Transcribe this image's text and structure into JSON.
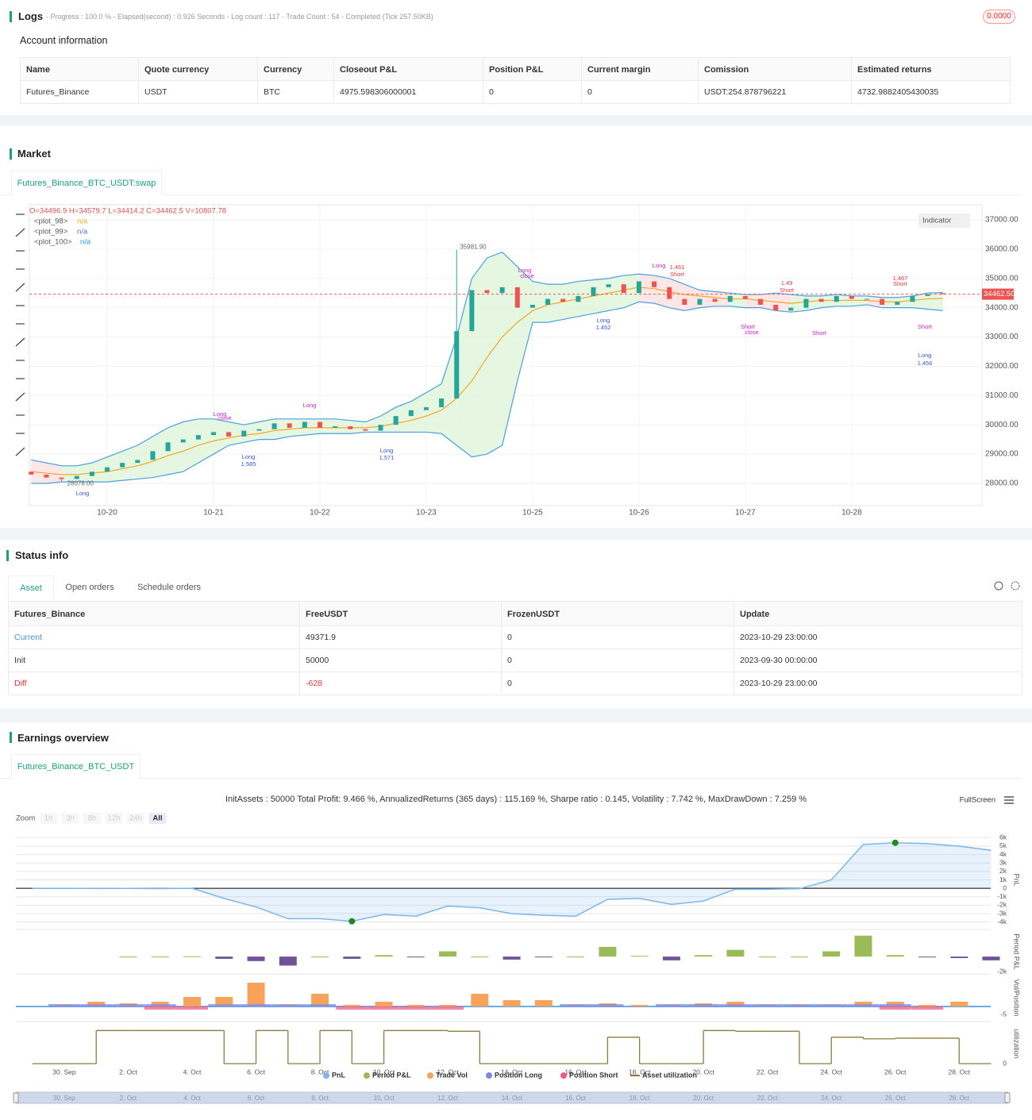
{
  "logs": {
    "title": "Logs",
    "progress": "- Progress : 100.0 % - Elapsed(second) : 0.926  Seconds - Log count : 117 - Trade Count : 54 - Completed (Tick 257.50KB)",
    "badge": "0.0000"
  },
  "account": {
    "title": "Account information",
    "headers": [
      "Name",
      "Quote currency",
      "Currency",
      "Closeout P&L",
      "Position P&L",
      "Current margin",
      "Comission",
      "Estimated returns"
    ],
    "rows": [
      [
        "Futures_Binance",
        "USDT",
        "BTC",
        "4975.598306000001",
        "0",
        "0",
        "USDT:254.878796221",
        "4732.9882405430035"
      ]
    ]
  },
  "market": {
    "title": "Market",
    "tab": "Futures_Binance_BTC_USDT:swap",
    "indicator_button": "Indicator",
    "ohlc": "O=34496.9 H=34579.7 L=34414.2 C=34462.5 V=10807.78",
    "plots": [
      {
        "name": "<plot_98>",
        "value": "n/a",
        "color": "#f5a623"
      },
      {
        "name": "<plot_99>",
        "value": "n/a",
        "color": "#5b6bbf"
      },
      {
        "name": "<plot_100>",
        "value": "n/a",
        "color": "#2196f3"
      }
    ],
    "chart_data": {
      "type": "candlestick",
      "grid": true,
      "up_color": "#26a69a",
      "down_color": "#ef5350",
      "categories": [
        null,
        null,
        null,
        null,
        null,
        "10-20",
        null,
        null,
        null,
        null,
        null,
        null,
        "10-21",
        null,
        null,
        null,
        null,
        null,
        null,
        "10-22",
        null,
        null,
        null,
        null,
        null,
        null,
        "10-23",
        null,
        null,
        null,
        null,
        null,
        null,
        "10-25",
        null,
        null,
        null,
        null,
        null,
        null,
        "10-26",
        null,
        null,
        null,
        null,
        null,
        null,
        "10-27",
        null,
        null,
        null,
        null,
        null,
        null,
        "10-28",
        null,
        null,
        null,
        null,
        null,
        null
      ],
      "open": [
        28400,
        28300,
        28200,
        28150,
        28250,
        28400,
        28550,
        28700,
        28800,
        29100,
        29400,
        29500,
        29650,
        29750,
        29600,
        29800,
        29850,
        30050,
        29900,
        30100,
        29900,
        29950,
        29850,
        29800,
        30000,
        30300,
        30500,
        30600,
        30900,
        33200,
        34600,
        34500,
        34700,
        34000,
        34100,
        34300,
        34200,
        34400,
        34700,
        34800,
        34500,
        34900,
        34700,
        34300,
        34100,
        34300,
        34200,
        34400,
        34300,
        34100,
        33900,
        34000,
        34300,
        34200,
        34400,
        34300,
        34300,
        34100,
        34200,
        34400,
        34496.9
      ],
      "close": [
        28300,
        28200,
        28150,
        28250,
        28400,
        28550,
        28700,
        28800,
        29100,
        29400,
        29500,
        29650,
        29750,
        29600,
        29800,
        29850,
        30050,
        29900,
        30100,
        29900,
        29950,
        29850,
        29800,
        30000,
        30300,
        30500,
        30600,
        30900,
        33200,
        34600,
        34500,
        34700,
        34000,
        34100,
        34300,
        34200,
        34400,
        34700,
        34800,
        34500,
        34900,
        34700,
        34300,
        34100,
        34300,
        34200,
        34400,
        34300,
        34100,
        33900,
        34000,
        34300,
        34200,
        34400,
        34300,
        34300,
        34100,
        34200,
        34400,
        34460,
        34462.5
      ],
      "bands": [
        {
          "name": "basis",
          "color": "#f5a623",
          "values": [
            28400,
            28350,
            28300,
            28300,
            28350,
            28400,
            28500,
            28600,
            28750,
            28950,
            29100,
            29300,
            29450,
            29550,
            29650,
            29700,
            29800,
            29850,
            29900,
            29900,
            29900,
            29900,
            29900,
            29950,
            30050,
            30150,
            30300,
            30500,
            30900,
            31500,
            32300,
            33000,
            33500,
            33900,
            34100,
            34200,
            34300,
            34400,
            34500,
            34600,
            34700,
            34650,
            34550,
            34450,
            34400,
            34350,
            34300,
            34300,
            34250,
            34200,
            34150,
            34200,
            34250,
            34250,
            34250,
            34250,
            34200,
            34200,
            34250,
            34300,
            34320
          ]
        },
        {
          "name": "upper",
          "color": "#4a9fe3",
          "values": [
            28800,
            28700,
            28600,
            28600,
            28700,
            28900,
            29100,
            29300,
            29600,
            29900,
            30100,
            30200,
            30200,
            30100,
            30000,
            30100,
            30200,
            30200,
            30200,
            30200,
            30200,
            30150,
            30100,
            30300,
            30600,
            30800,
            31100,
            31400,
            33000,
            35000,
            35700,
            35900,
            35400,
            34900,
            34800,
            34800,
            34900,
            34950,
            35000,
            35100,
            35150,
            35100,
            35000,
            34800,
            34600,
            34550,
            34500,
            34450,
            34450,
            34500,
            34450,
            34400,
            34400,
            34450,
            34400,
            34400,
            34350,
            34350,
            34400,
            34500,
            34520
          ]
        },
        {
          "name": "lower",
          "color": "#4a9fe3",
          "values": [
            28000,
            28000,
            28050,
            28050,
            28050,
            28050,
            28100,
            28150,
            28200,
            28300,
            28400,
            28700,
            29000,
            29300,
            29400,
            29500,
            29500,
            29600,
            29650,
            29700,
            29700,
            29700,
            29750,
            29750,
            29750,
            29750,
            29750,
            29700,
            29300,
            28900,
            29000,
            29300,
            31500,
            33500,
            33500,
            33600,
            33700,
            33800,
            33900,
            34000,
            34200,
            34150,
            34000,
            33900,
            34000,
            34050,
            34050,
            34000,
            34000,
            33900,
            33850,
            33900,
            34000,
            34050,
            34050,
            34100,
            34000,
            34000,
            34000,
            33950,
            33900
          ]
        }
      ],
      "band_fill_up": "#dff5d8",
      "band_fill_down": "#fbe0e0",
      "high_marker": {
        "value": 35981.9,
        "label": "35981.90"
      },
      "low_marker": {
        "value": 28076,
        "label": "28076.00"
      },
      "last_price": {
        "value": 34462.5,
        "label": "34462.50"
      },
      "ylim": [
        27240,
        37515
      ],
      "yticks": [
        {
          "value": 28000,
          "label": "28000.00"
        },
        {
          "value": 29000,
          "label": "29000.00"
        },
        {
          "value": 30000,
          "label": "30000.00"
        },
        {
          "value": 31000,
          "label": "31000.00"
        },
        {
          "value": 32000,
          "label": "32000.00"
        },
        {
          "value": 33000,
          "label": "33000.00"
        },
        {
          "value": 34000,
          "label": "34000.00"
        },
        {
          "value": 35000,
          "label": "35000.00"
        },
        {
          "value": 36000,
          "label": "36000.00"
        },
        {
          "value": 37000,
          "label": "37000.00"
        }
      ],
      "annotations": [
        "Long",
        "Long",
        "1.585",
        "Long",
        "1.571",
        "Long",
        "close",
        "Long",
        "Long",
        "close",
        "Long",
        "1.452",
        "Long",
        "1.461",
        "Short",
        "1.49",
        "Short",
        "Short",
        "close",
        "Short",
        "1.467",
        "Short",
        "Short",
        "Long",
        "1.456"
      ]
    }
  },
  "status": {
    "title": "Status info",
    "tabs": [
      "Asset",
      "Open orders",
      "Schedule orders"
    ],
    "table": {
      "headers": [
        "Futures_Binance",
        "FreeUSDT",
        "FrozenUSDT",
        "Update"
      ],
      "rows": [
        [
          "Current",
          "49371.9",
          "0",
          "2023-10-29 23:00:00"
        ],
        [
          "Init",
          "50000",
          "0",
          "2023-09-30 00:00:00"
        ],
        [
          "Diff",
          "-628",
          "0",
          "2023-10-29 23:00:00"
        ]
      ]
    }
  },
  "earnings": {
    "title": "Earnings overview",
    "tab": "Futures_Binance_BTC_USDT",
    "stats": "InitAssets : 50000 Total Profit: 9.466 %, AnnualizedReturns (365 days) : 115.169 %, Sharpe ratio : 0.145, Volatility : 7.742 %, MaxDrawDown : 7.259 %",
    "fullscreen": "FullScreen",
    "zoom": {
      "label": "Zoom",
      "buttons": [
        "1h",
        "3h",
        "8h",
        "12h",
        "24h",
        "All"
      ]
    },
    "chart_data": [
      {
        "type": "area",
        "y_label": "PnL",
        "grid": true,
        "x": [
          "29. Sep",
          "30. Sep",
          "1. Oct",
          "2. Oct",
          "3. Oct",
          "4. Oct",
          "5. Oct",
          "6. Oct",
          "7. Oct",
          "8. Oct",
          "9. Oct",
          "10. Oct",
          "11. Oct",
          "12. Oct",
          "13. Oct",
          "14. Oct",
          "15. Oct",
          "16. Oct",
          "17. Oct",
          "18. Oct",
          "19. Oct",
          "20. Oct",
          "21. Oct",
          "22. Oct",
          "23. Oct",
          "24. Oct",
          "25. Oct",
          "26. Oct",
          "27. Oct",
          "28. Oct",
          "29. Oct"
        ],
        "xticks": [
          "30. Sep",
          "2. Oct",
          "4. Oct",
          "6. Oct",
          "8. Oct",
          "10. Oct",
          "12. Oct",
          "14. Oct",
          "16. Oct",
          "18. Oct",
          "20. Oct",
          "22. Oct",
          "24. Oct",
          "26. Oct",
          "28. Oct"
        ],
        "series": [
          {
            "name": "PnL",
            "color": "#7cb5ec",
            "values": [
              0,
              0,
              -20,
              -10,
              -30,
              0,
              -1200,
              -2200,
              -3600,
              -3600,
              -3900,
              -3100,
              -3300,
              -2100,
              -2300,
              -3000,
              -3200,
              -3300,
              -1300,
              -1200,
              -1900,
              -1500,
              -100,
              -100,
              -50,
              1000,
              5200,
              5400,
              5300,
              5000,
              4500
            ]
          }
        ],
        "ylim": [
          -4500,
          6500
        ],
        "yticks": [
          {
            "value": -4000,
            "label": "-4k"
          },
          {
            "value": -3000,
            "label": "-3k"
          },
          {
            "value": -2000,
            "label": "-2k"
          },
          {
            "value": -1000,
            "label": "-1k"
          },
          0,
          {
            "value": 1000,
            "label": "1k"
          },
          {
            "value": 2000,
            "label": "2k"
          },
          {
            "value": 3000,
            "label": "3k"
          },
          {
            "value": 4000,
            "label": "4k"
          },
          {
            "value": 5000,
            "label": "5k"
          },
          {
            "value": 6000,
            "label": "6k"
          }
        ]
      },
      {
        "type": "bar",
        "y_label": "Period P&L",
        "negative_color": "#6e5494",
        "series": [
          {
            "name": "Period P&L",
            "color": "#9bbb59",
            "values": [
              null,
              null,
              null,
              0,
              0,
              50,
              -300,
              -600,
              -1200,
              0,
              -300,
              200,
              -100,
              700,
              0,
              -400,
              -100,
              0,
              1300,
              100,
              -500,
              200,
              900,
              0,
              0,
              700,
              2800,
              200,
              -100,
              -200,
              -500
            ]
          }
        ],
        "ylim": [
          -2000,
          3300
        ],
        "yticks": [
          {
            "value": -2000,
            "label": "-2k"
          }
        ]
      },
      {
        "type": "bar",
        "y_label": "Vol/Position",
        "series": [
          {
            "name": "Trade Vol",
            "color": "#f7a35c",
            "values": [
              null,
              1,
              3,
              2,
              3,
              6,
              6,
              15,
              1,
              8,
              1,
              3,
              1,
              1,
              8,
              4,
              4,
              1,
              2,
              1,
              1,
              2,
              3,
              1,
              1,
              1,
              3,
              3,
              1,
              3,
              null
            ]
          },
          {
            "name": "Position Long",
            "color": "#8085e9",
            "values": [
              0,
              1.5,
              1.5,
              1.5,
              1.5,
              0,
              1.5,
              1.5,
              1.5,
              1.5,
              0,
              0,
              0,
              0,
              0,
              0,
              0,
              1.5,
              1.5,
              0,
              1.5,
              1.5,
              1.5,
              1.5,
              1.5,
              1.5,
              1.5,
              1.5,
              0,
              0,
              0
            ]
          },
          {
            "name": "Position Short",
            "color": "#f15c80",
            "values": [
              0,
              0,
              0,
              0,
              -2,
              -2,
              0,
              0,
              0,
              0,
              -2,
              -2,
              -2,
              -2,
              0,
              0,
              0,
              0,
              0,
              0,
              0,
              0,
              0,
              0,
              0,
              0,
              0,
              -2,
              -2,
              0,
              0
            ]
          }
        ],
        "ylim": [
          -8,
          19
        ],
        "yticks": [
          -5
        ]
      },
      {
        "type": "step",
        "y_label": "utilization",
        "series": [
          {
            "name": "Asset utilization",
            "color": "#8b7d3a",
            "values": [
              0,
              0,
              100,
              100,
              100,
              100,
              0,
              100,
              0,
              100,
              0,
              100,
              100,
              98,
              0,
              0,
              0,
              0,
              80,
              0,
              0,
              100,
              98,
              98,
              0,
              80,
              75,
              77,
              77,
              0,
              0
            ]
          }
        ],
        "ylim": [
          0,
          120
        ],
        "yticks": [
          0
        ]
      }
    ]
  }
}
